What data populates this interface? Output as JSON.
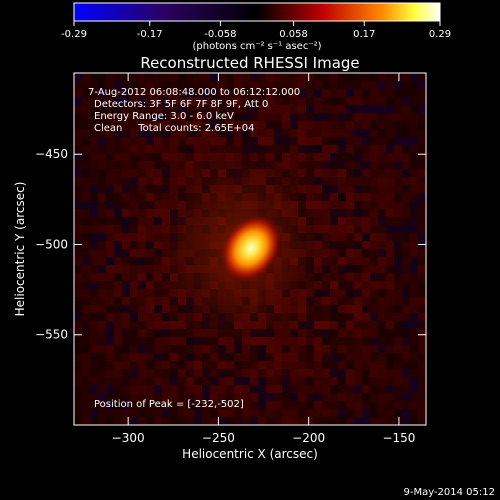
{
  "chart_data": {
    "type": "heatmap",
    "title": "Reconstructed RHESSI Image",
    "xlabel": "Heliocentric X (arcsec)",
    "ylabel": "Heliocentric Y (arcsec)",
    "xlim": [
      -330,
      -135
    ],
    "ylim": [
      -600,
      -405
    ],
    "x_ticks": [
      -300,
      -250,
      -200,
      -150
    ],
    "y_ticks": [
      -450,
      -500,
      -550
    ],
    "colorbar": {
      "ticks": [
        "-0.29",
        "-0.17",
        "-0.058",
        "0.058",
        "0.17",
        "0.29"
      ],
      "range": [
        -0.29,
        0.29
      ],
      "unit_label": "(photons cm⁻² s⁻¹ asec⁻²)"
    },
    "info": {
      "time_range": "7-Aug-2012 06:08:48.000 to 06:12:12.000",
      "detectors": "Detectors: 3F 5F 6F 7F 8F 9F, Att 0",
      "energy": "Energy Range: 3.0 - 6.0 keV",
      "clean": "Clean     Total counts: 2.65E+04",
      "peak": "Position of Peak = [-232,-502]"
    },
    "source": {
      "peak_x": -232,
      "peak_y": -502,
      "peak_value": 0.29
    }
  },
  "footer_date": "9-May-2014 05:12"
}
